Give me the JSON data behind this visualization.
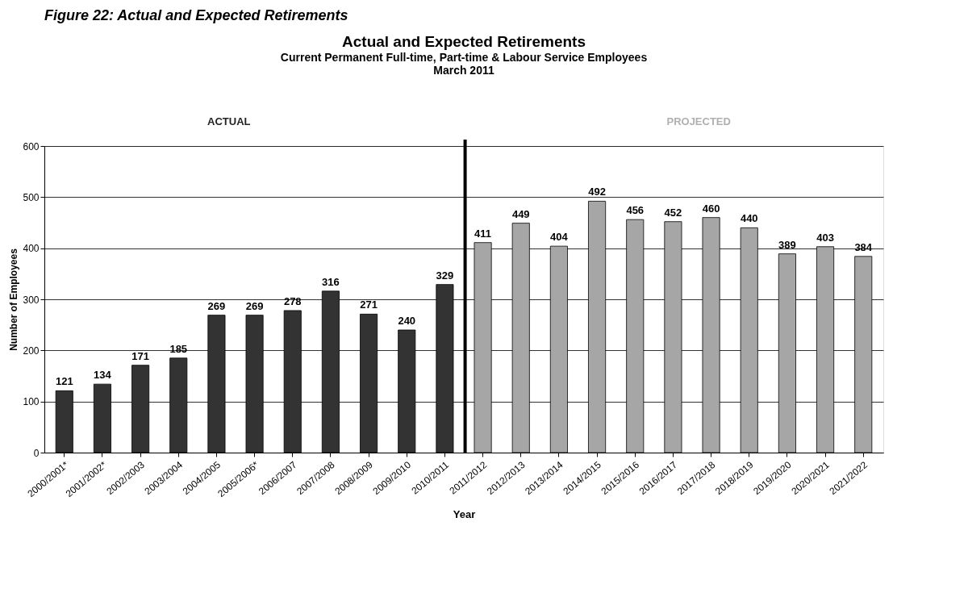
{
  "chart_data": {
    "type": "bar",
    "title": "Actual and Expected Retirements",
    "subtitle": [
      "Current Permanent Full-time, Part-time & Labour Service Employees",
      "March 2011"
    ],
    "xlabel": "Year",
    "ylabel": "Number of Employees",
    "categories": [
      "2000/2001*",
      "2001/2002*",
      "2002/2003",
      "2003/2004",
      "2004/2005",
      "2005/2006*",
      "2006/2007",
      "2007/2008",
      "2008/2009",
      "2009/2010",
      "2010/2011",
      "2011/2012",
      "2012/2013",
      "2013/2014",
      "2014/2015",
      "2015/2016",
      "2016/2017",
      "2017/2018",
      "2018/2019",
      "2019/2020",
      "2020/2021",
      "2021/2022"
    ],
    "values": [
      121,
      134,
      171,
      185,
      269,
      269,
      278,
      316,
      271,
      240,
      329,
      411,
      449,
      404,
      492,
      456,
      452,
      460,
      440,
      389,
      403,
      384
    ],
    "colors": [
      "#333333",
      "#333333",
      "#333333",
      "#333333",
      "#333333",
      "#333333",
      "#333333",
      "#333333",
      "#333333",
      "#333333",
      "#333333",
      "#a6a6a6",
      "#a6a6a6",
      "#a6a6a6",
      "#a6a6a6",
      "#a6a6a6",
      "#a6a6a6",
      "#a6a6a6",
      "#a6a6a6",
      "#a6a6a6",
      "#a6a6a6",
      "#a6a6a6"
    ],
    "ylim": [
      0,
      600
    ],
    "yticks": [
      0,
      100,
      200,
      300,
      400,
      500,
      600
    ],
    "grid": "y",
    "data_labels": true,
    "ref_lines": [
      {
        "axis": "x",
        "value": "2011/2012",
        "color": "#000000"
      }
    ],
    "annotations": [
      "Figure 22:  Actual and Expected Retirements",
      "ACTUAL",
      "PROJECTED"
    ]
  }
}
